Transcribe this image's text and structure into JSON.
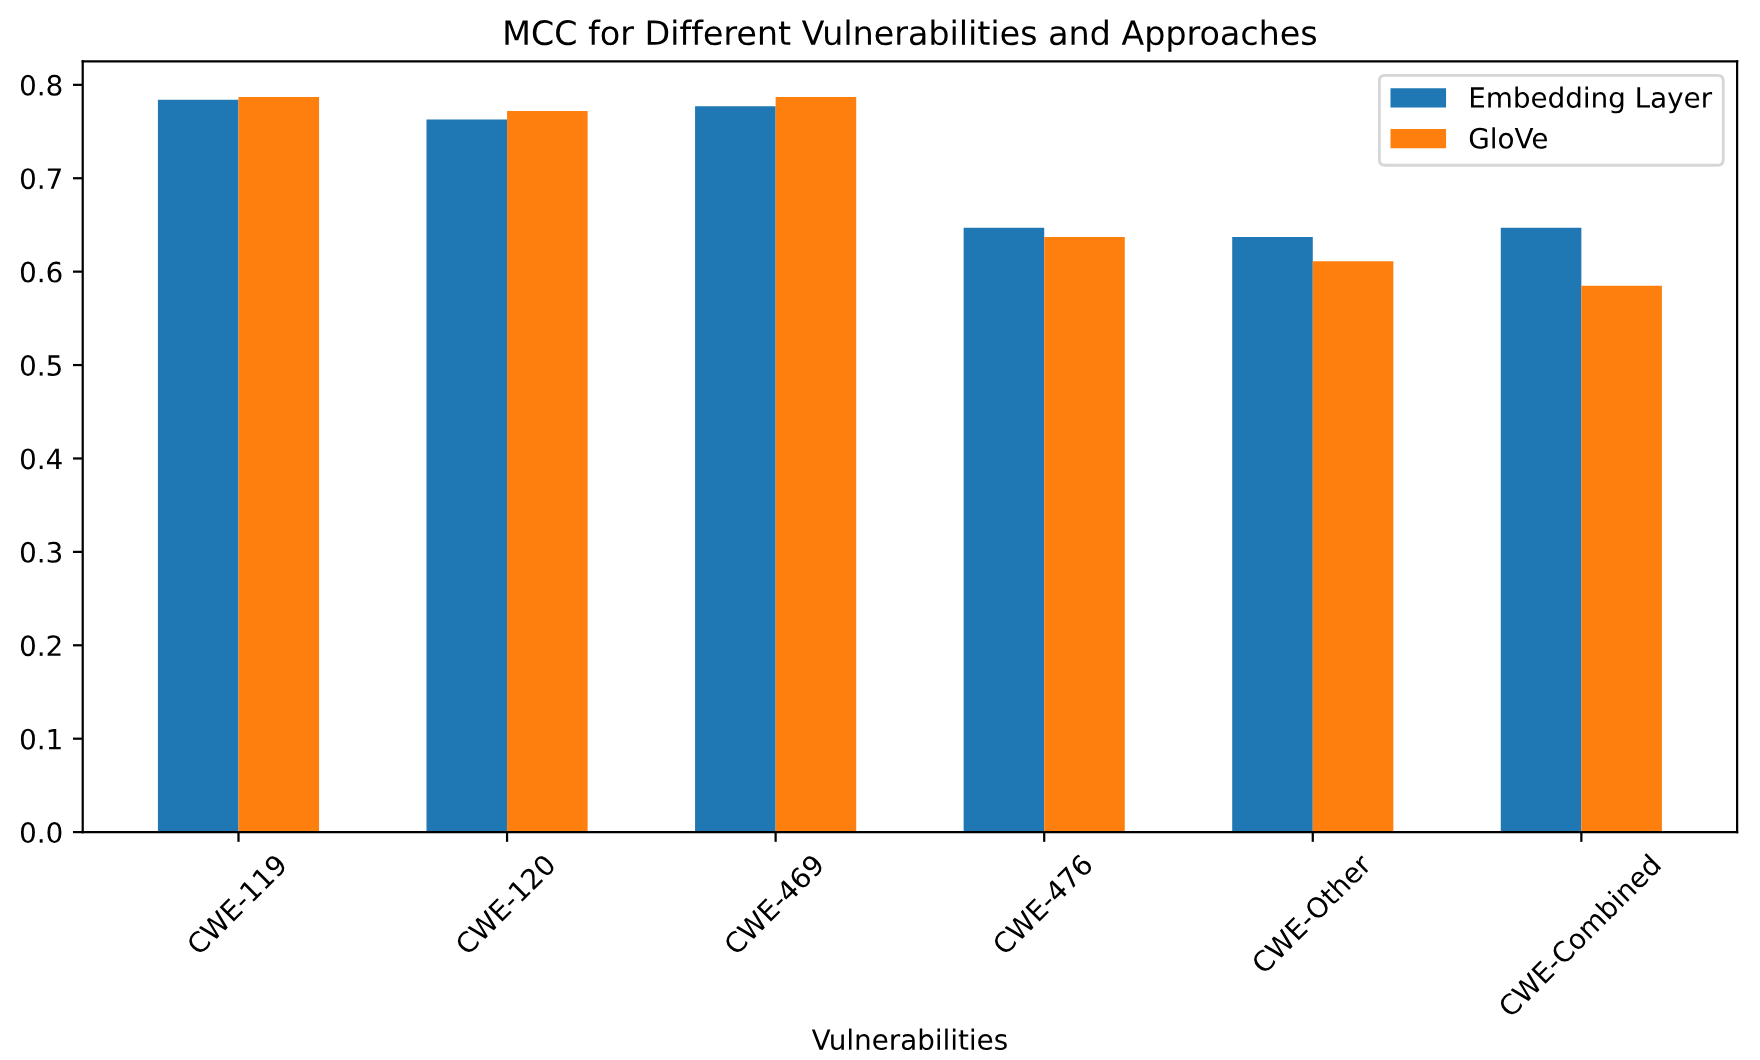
{
  "chart_data": {
    "type": "bar",
    "title": "MCC for Different Vulnerabilities and Approaches",
    "xlabel": "Vulnerabilities",
    "categories": [
      "CWE-119",
      "CWE-120",
      "CWE-469",
      "CWE-476",
      "CWE-Other",
      "CWE-Combined"
    ],
    "series": [
      {
        "name": "Embedding Layer",
        "color": "#1f77b4",
        "values": [
          0.784,
          0.763,
          0.777,
          0.647,
          0.637,
          0.647
        ]
      },
      {
        "name": "GloVe",
        "color": "#ff7f0e",
        "values": [
          0.787,
          0.772,
          0.787,
          0.637,
          0.611,
          0.585
        ]
      }
    ],
    "ylim": [
      0,
      0.825
    ],
    "yticks": [
      {
        "value": 0,
        "label": "0.0"
      },
      0.1,
      0.2,
      0.3,
      0.4,
      0.5,
      0.6,
      0.7,
      0.8
    ],
    "legend": "top right",
    "grid": false
  }
}
